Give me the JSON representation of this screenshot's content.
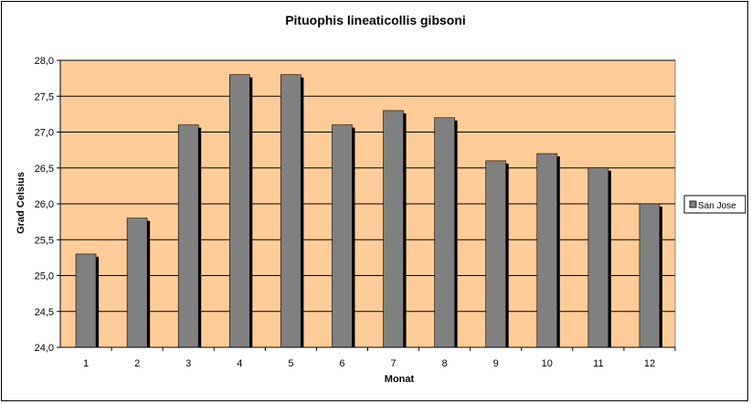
{
  "chart_data": {
    "type": "bar",
    "title": "Pituophis lineaticollis  gibsoni",
    "xlabel": "Monat",
    "ylabel": "Grad Celsius",
    "categories": [
      "1",
      "2",
      "3",
      "4",
      "5",
      "6",
      "7",
      "8",
      "9",
      "10",
      "11",
      "12"
    ],
    "series": [
      {
        "name": "San Jose",
        "values": [
          25.3,
          25.8,
          27.1,
          27.8,
          27.8,
          27.1,
          27.3,
          27.2,
          26.6,
          26.7,
          26.5,
          26.0
        ]
      }
    ],
    "ylim": [
      24.0,
      28.0
    ],
    "yticks": [
      "24,0",
      "24,5",
      "25,0",
      "25,5",
      "26,0",
      "26,5",
      "27,0",
      "27,5",
      "28,0"
    ],
    "grid": true,
    "legend": "right",
    "colors": {
      "plot_background": "#FFCC99",
      "bar_fill": "#808080",
      "bar_shadow": "#000000",
      "gridline": "#000000"
    }
  }
}
